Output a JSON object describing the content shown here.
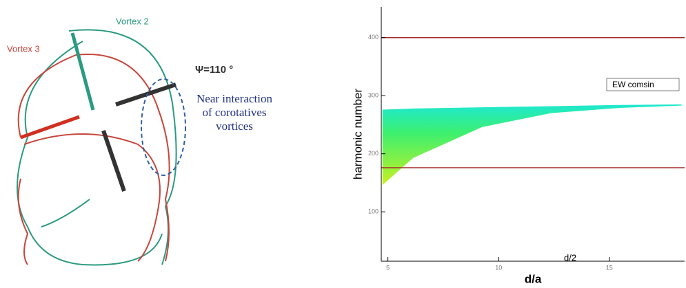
{
  "diagram": {
    "labels": [
      "Vortex 2",
      "Vortex 3",
      "Ψ=110 °",
      "Near interaction",
      "of corotatives",
      "vortices"
    ]
  },
  "chart_data": {
    "type": "band",
    "xlabel": "d/a",
    "ylabel": "harmonic number",
    "annotations": [
      "EW comsin",
      "d/2"
    ],
    "band": {
      "x": [
        4.75,
        6.15,
        9.25,
        12.36,
        15.47,
        18.26
      ],
      "upper": [
        276,
        278,
        280,
        282,
        284,
        285
      ],
      "lower": [
        146,
        193,
        246,
        270,
        279,
        283
      ]
    },
    "reference_lines": {
      "values": [
        400,
        176
      ],
      "color": "#a52a2a"
    },
    "xlim": [
      4.7,
      18.4
    ],
    "ylim": [
      15,
      453
    ],
    "xticks": [
      5,
      10,
      15
    ],
    "yticks": [
      100,
      200,
      300,
      400
    ]
  }
}
